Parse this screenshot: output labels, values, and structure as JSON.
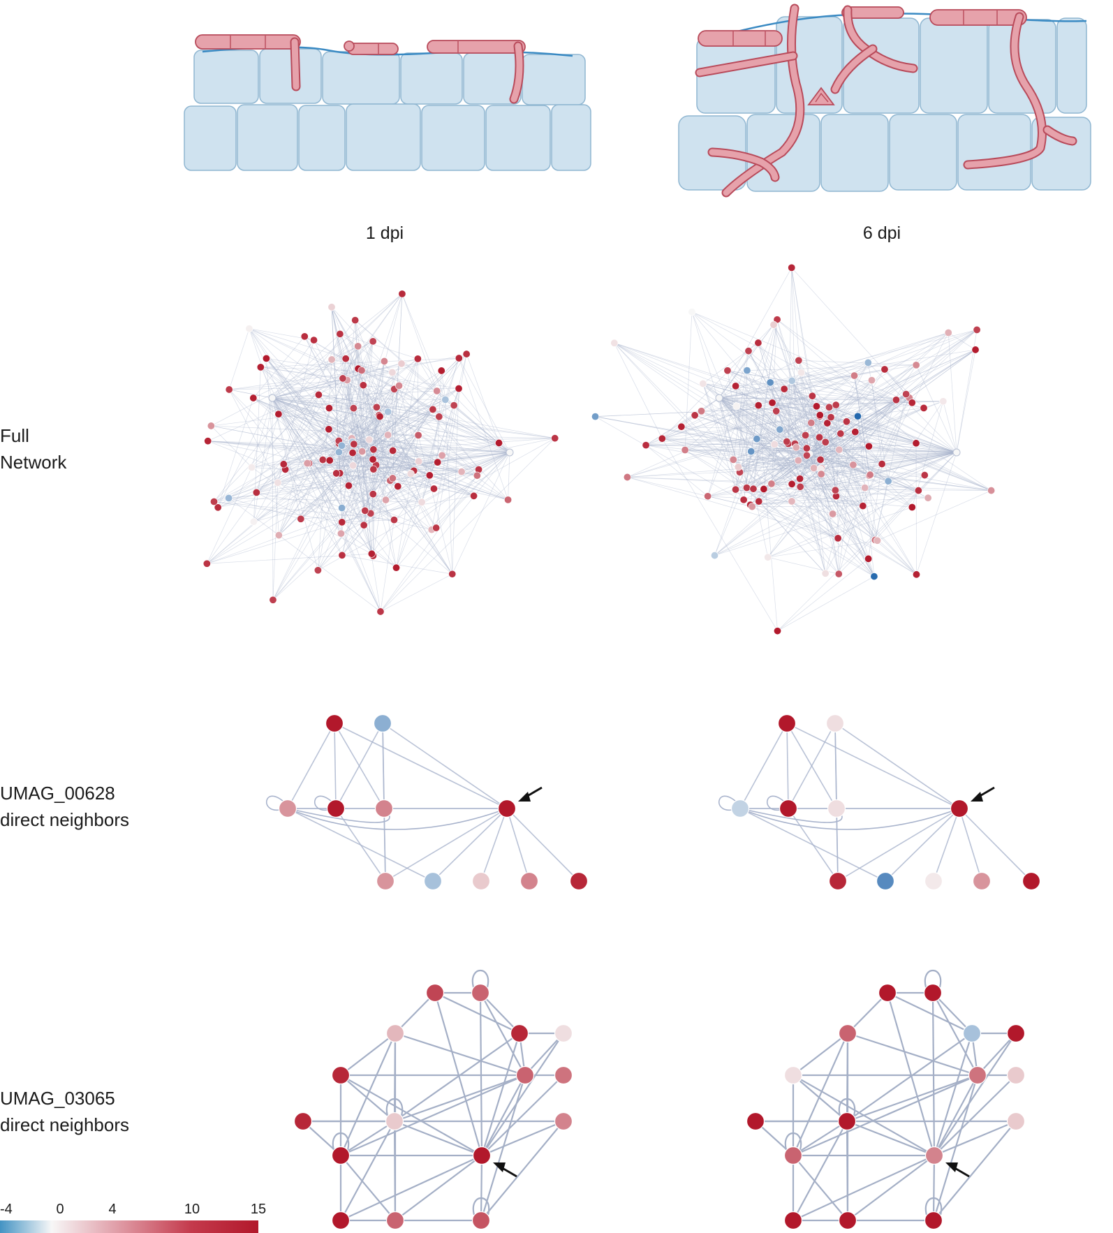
{
  "columns": [
    {
      "id": "1dpi",
      "label": "1 dpi"
    },
    {
      "id": "6dpi",
      "label": "6 dpi"
    }
  ],
  "rows": [
    {
      "id": "full",
      "label_lines": [
        "Full",
        "Network"
      ]
    },
    {
      "id": "n00628",
      "label_lines": [
        "UMAG_00628",
        "direct neighbors"
      ]
    },
    {
      "id": "n03065",
      "label_lines": [
        "UMAG_03065",
        "direct neighbors"
      ]
    }
  ],
  "legend": {
    "ticks": [
      "-4",
      "0",
      "4",
      "10",
      "15"
    ],
    "tick_values": [
      -4,
      0,
      4,
      10,
      15
    ],
    "colors": {
      "min": "#2166ac",
      "zero": "#f7f7f7",
      "max": "#b2182b"
    }
  },
  "colors": {
    "edge": "#a8b3cc",
    "plant_cell": "#cfe2ef",
    "plant_cell_outline": "#8fb6d1",
    "cuticle": "#3a8ac3",
    "hypha_fill": "#e6a2ab",
    "hypha_outline": "#b84a5a"
  },
  "networks": {
    "n00628": {
      "node_values": {
        "1dpi": [
          13,
          -2,
          5,
          13,
          6,
          13,
          5,
          -1.5,
          2,
          6,
          12
        ],
        "6dpi": [
          13,
          1,
          -1,
          13,
          1,
          13,
          12,
          -3,
          0.5,
          5,
          13
        ]
      },
      "focal_node": 5
    },
    "n03065": {
      "node_values": {
        "1dpi": [
          10,
          8,
          3,
          12,
          1,
          12,
          8,
          7,
          12,
          2,
          13,
          6,
          13,
          13,
          8,
          9
        ],
        "6dpi": [
          13,
          13,
          8,
          -1.5,
          13,
          1,
          7,
          2,
          13,
          13,
          6,
          2,
          8,
          13,
          13,
          13
        ]
      },
      "focal_node": 10
    },
    "full": {
      "n_nodes": 120
    }
  }
}
